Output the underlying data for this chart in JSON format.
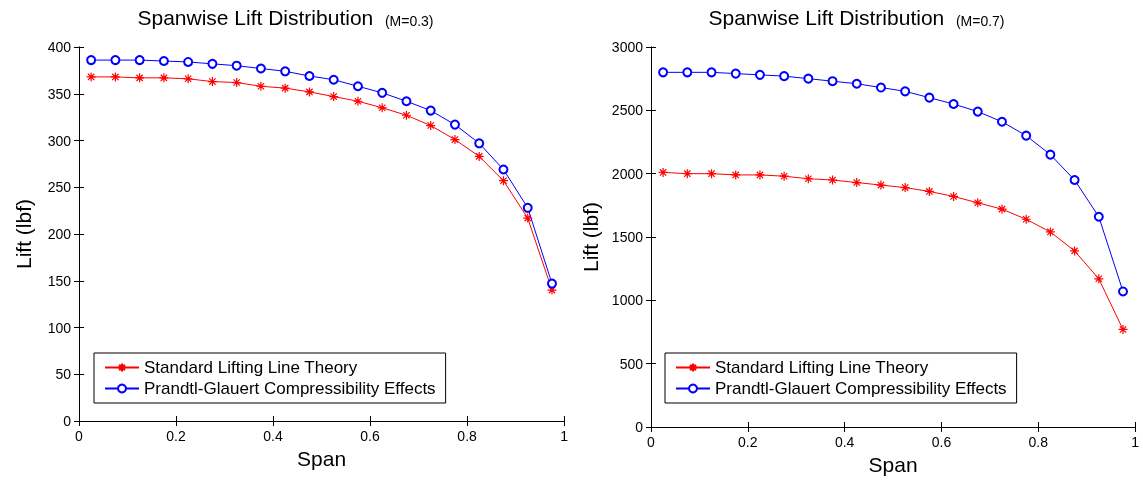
{
  "chart_data": [
    {
      "type": "line",
      "title": "Spanwise Lift Distribution",
      "subtitle": "(M=0.3)",
      "xlabel": "Span",
      "ylabel": "Lift (lbf)",
      "x": [
        0.025,
        0.075,
        0.125,
        0.175,
        0.225,
        0.275,
        0.325,
        0.375,
        0.425,
        0.475,
        0.525,
        0.575,
        0.625,
        0.675,
        0.725,
        0.775,
        0.825,
        0.875,
        0.925,
        0.975
      ],
      "series": [
        {
          "name": "Standard Lifting Line Theory",
          "color": "#ff0000",
          "marker": "cross",
          "values": [
            368,
            368,
            367,
            367,
            366,
            363,
            362,
            358,
            356,
            352,
            347,
            342,
            335,
            327,
            316,
            301,
            283,
            257,
            217,
            140
          ]
        },
        {
          "name": "Prandtl-Glauert Compressibility Effects",
          "color": "#0000ff",
          "marker": "circle",
          "values": [
            386,
            386,
            386,
            385,
            384,
            382,
            380,
            377,
            374,
            369,
            365,
            358,
            351,
            342,
            332,
            317,
            297,
            269,
            228,
            147
          ]
        }
      ],
      "xlim": [
        0,
        1
      ],
      "xticks": [
        0,
        0.2,
        0.4,
        0.6,
        0.8,
        1
      ],
      "ylim": [
        0,
        400
      ],
      "yticks": [
        0,
        50,
        100,
        150,
        200,
        250,
        300,
        350,
        400
      ],
      "grid": false,
      "legend": "bottom left",
      "line_style": "solid"
    },
    {
      "type": "line",
      "title": "Spanwise Lift Distribution",
      "subtitle": "(M=0.7)",
      "xlabel": "Span",
      "ylabel": "Lift (lbf)",
      "x": [
        0.025,
        0.075,
        0.125,
        0.175,
        0.225,
        0.275,
        0.325,
        0.375,
        0.425,
        0.475,
        0.525,
        0.575,
        0.625,
        0.675,
        0.725,
        0.775,
        0.825,
        0.875,
        0.925,
        0.975
      ],
      "series": [
        {
          "name": "Standard Lifting Line Theory",
          "color": "#ff0000",
          "marker": "cross",
          "values": [
            2010,
            2000,
            2000,
            1990,
            1990,
            1980,
            1960,
            1950,
            1930,
            1910,
            1890,
            1860,
            1820,
            1770,
            1720,
            1640,
            1540,
            1390,
            1170,
            770
          ]
        },
        {
          "name": "Prandtl-Glauert Compressibility Effects",
          "color": "#0000ff",
          "marker": "circle",
          "values": [
            2800,
            2800,
            2800,
            2790,
            2780,
            2770,
            2750,
            2730,
            2710,
            2680,
            2650,
            2600,
            2550,
            2490,
            2410,
            2300,
            2150,
            1950,
            1660,
            1070
          ]
        }
      ],
      "xlim": [
        0,
        1
      ],
      "xticks": [
        0,
        0.2,
        0.4,
        0.6,
        0.8,
        1
      ],
      "ylim": [
        0,
        3000
      ],
      "yticks": [
        0,
        500,
        1000,
        1500,
        2000,
        2500,
        3000
      ],
      "grid": false,
      "legend": "bottom left",
      "line_style": "solid"
    }
  ]
}
